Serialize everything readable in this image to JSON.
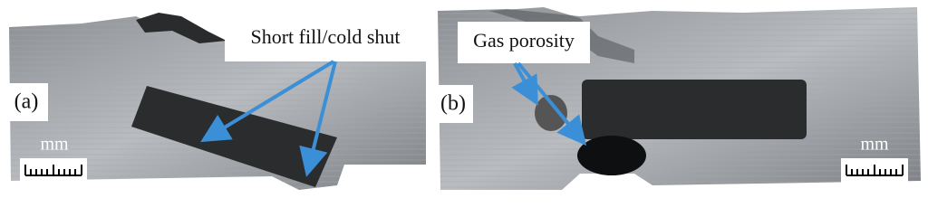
{
  "panels": [
    {
      "label": "(a)",
      "annotation": "Short fill/cold shut",
      "scale_unit": "mm"
    },
    {
      "label": "(b)",
      "annotation": "Gas porosity",
      "scale_unit": "mm"
    }
  ]
}
